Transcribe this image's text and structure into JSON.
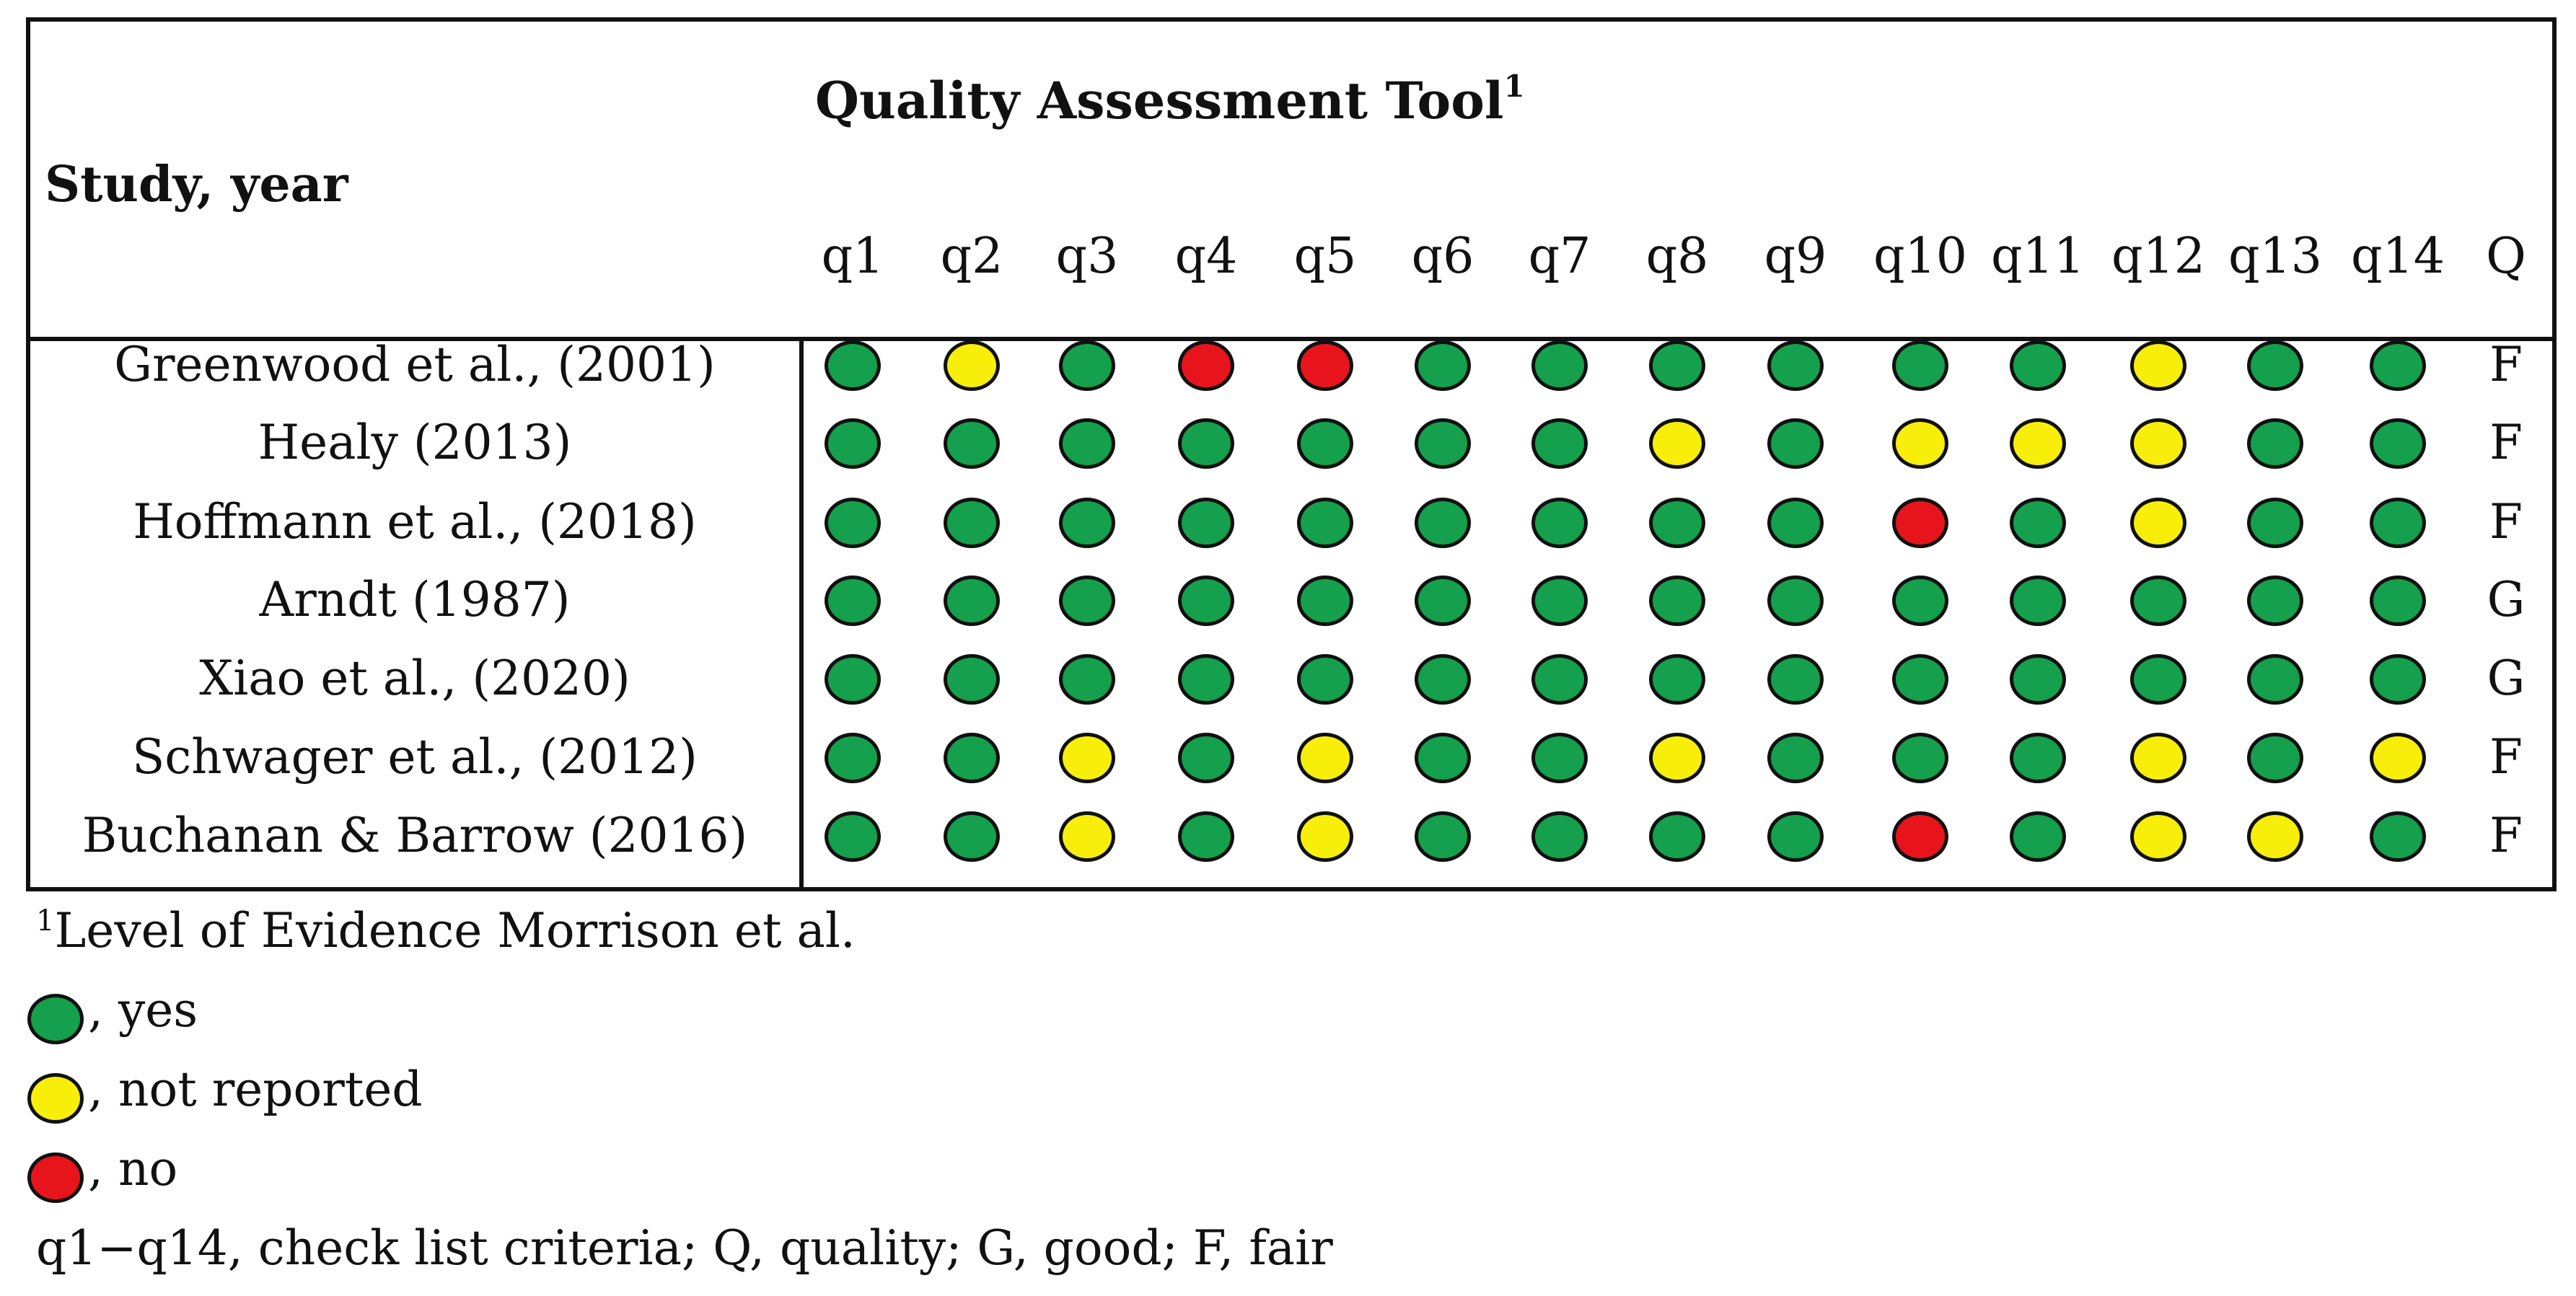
{
  "table": {
    "study_header": "Study, year",
    "tool_title": "Quality Assessment Tool",
    "tool_footnote_mark": "1",
    "columns": [
      "q1",
      "q2",
      "q3",
      "q4",
      "q5",
      "q6",
      "q7",
      "q8",
      "q9",
      "q10",
      "q11",
      "q12",
      "q13",
      "q14",
      "Q"
    ],
    "rows": [
      {
        "study": "Greenwood et al., (2001)",
        "ratings": [
          "yes",
          "nr",
          "yes",
          "no",
          "no",
          "yes",
          "yes",
          "yes",
          "yes",
          "yes",
          "yes",
          "nr",
          "yes",
          "yes"
        ],
        "quality": "F"
      },
      {
        "study": "Healy (2013)",
        "ratings": [
          "yes",
          "yes",
          "yes",
          "yes",
          "yes",
          "yes",
          "yes",
          "nr",
          "yes",
          "nr",
          "nr",
          "nr",
          "yes",
          "yes"
        ],
        "quality": "F"
      },
      {
        "study": "Hoffmann et al., (2018)",
        "ratings": [
          "yes",
          "yes",
          "yes",
          "yes",
          "yes",
          "yes",
          "yes",
          "yes",
          "yes",
          "no",
          "yes",
          "nr",
          "yes",
          "yes"
        ],
        "quality": "F"
      },
      {
        "study": "Arndt (1987)",
        "ratings": [
          "yes",
          "yes",
          "yes",
          "yes",
          "yes",
          "yes",
          "yes",
          "yes",
          "yes",
          "yes",
          "yes",
          "yes",
          "yes",
          "yes"
        ],
        "quality": "G"
      },
      {
        "study": "Xiao et al., (2020)",
        "ratings": [
          "yes",
          "yes",
          "yes",
          "yes",
          "yes",
          "yes",
          "yes",
          "yes",
          "yes",
          "yes",
          "yes",
          "yes",
          "yes",
          "yes"
        ],
        "quality": "G"
      },
      {
        "study": "Schwager et al., (2012)",
        "ratings": [
          "yes",
          "yes",
          "nr",
          "yes",
          "nr",
          "yes",
          "yes",
          "nr",
          "yes",
          "yes",
          "yes",
          "nr",
          "yes",
          "nr"
        ],
        "quality": "F"
      },
      {
        "study": "Buchanan & Barrow (2016)",
        "ratings": [
          "yes",
          "yes",
          "nr",
          "yes",
          "nr",
          "yes",
          "yes",
          "yes",
          "yes",
          "no",
          "yes",
          "nr",
          "nr",
          "yes"
        ],
        "quality": "F"
      }
    ]
  },
  "colors": {
    "yes": "#14a04c",
    "nr": "#f7ef0a",
    "no": "#e8141c"
  },
  "footnotes": {
    "mark": "1",
    "level_text": "Level of Evidence Morrison et al.",
    "legend_yes": ", yes",
    "legend_nr": ", not reported",
    "legend_no": ", no",
    "abbrev": "q1−q14, check list criteria; Q, quality; G, good; F, fair"
  }
}
